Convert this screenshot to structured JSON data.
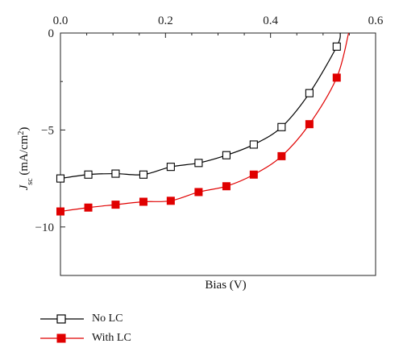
{
  "chart_data": {
    "type": "line",
    "xlabel": "Bias (V)",
    "ylabel_main": "J",
    "ylabel_sub": "sc",
    "ylabel_unit_prefix": " (mA/cm",
    "ylabel_unit_sup": "2",
    "ylabel_unit_suffix": ")",
    "xlim": [
      0.0,
      0.6
    ],
    "ylim": [
      -12.5,
      0
    ],
    "x_ticks": [
      0.0,
      0.2,
      0.4,
      0.6
    ],
    "x_tick_labels": [
      "0.0",
      "0.2",
      "0.4",
      "0.6"
    ],
    "y_ticks": [
      0,
      -5,
      -10
    ],
    "y_tick_labels": [
      "0",
      "−5",
      "−10"
    ],
    "x_axis_position": "top",
    "grid": false,
    "legend_position": "bottom-left",
    "series": [
      {
        "name": "No LC",
        "color": "#000000",
        "marker": "open-square",
        "x": [
          0.0,
          0.053,
          0.105,
          0.158,
          0.21,
          0.263,
          0.316,
          0.368,
          0.421,
          0.474,
          0.526
        ],
        "y": [
          -7.5,
          -7.3,
          -7.25,
          -7.3,
          -6.9,
          -6.7,
          -6.3,
          -5.75,
          -4.85,
          -3.1,
          -0.7
        ]
      },
      {
        "name": "With LC",
        "color": "#e00000",
        "marker": "filled-square",
        "x": [
          0.0,
          0.053,
          0.105,
          0.158,
          0.21,
          0.263,
          0.316,
          0.368,
          0.421,
          0.474,
          0.526
        ],
        "y": [
          -9.2,
          -9.0,
          -8.85,
          -8.7,
          -8.65,
          -8.2,
          -7.9,
          -7.3,
          -6.35,
          -4.7,
          -2.3
        ]
      }
    ]
  }
}
